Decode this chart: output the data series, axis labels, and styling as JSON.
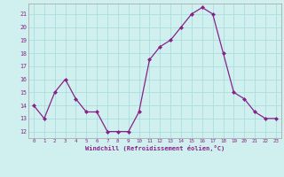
{
  "x": [
    0,
    1,
    2,
    3,
    4,
    5,
    6,
    7,
    8,
    9,
    10,
    11,
    12,
    13,
    14,
    15,
    16,
    17,
    18,
    19,
    20,
    21,
    22,
    23
  ],
  "y": [
    14,
    13,
    15,
    16,
    14.5,
    13.5,
    13.5,
    12,
    12,
    12,
    13.5,
    17.5,
    18.5,
    19,
    20,
    21,
    21.5,
    21,
    18,
    15,
    14.5,
    13.5,
    13,
    13
  ],
  "line_color": "#882288",
  "marker_color": "#882288",
  "bg_color": "#d0f0f0",
  "grid_color": "#aadddd",
  "axis_color": "#882288",
  "spine_color": "#aaaaaa",
  "ylim": [
    11.5,
    21.8
  ],
  "yticks": [
    12,
    13,
    14,
    15,
    16,
    17,
    18,
    19,
    20,
    21
  ],
  "xticks": [
    0,
    1,
    2,
    3,
    4,
    5,
    6,
    7,
    8,
    9,
    10,
    11,
    12,
    13,
    14,
    15,
    16,
    17,
    18,
    19,
    20,
    21,
    22,
    23
  ],
  "xlabel": "Windchill (Refroidissement éolien,°C)",
  "xlim": [
    -0.5,
    23.5
  ]
}
